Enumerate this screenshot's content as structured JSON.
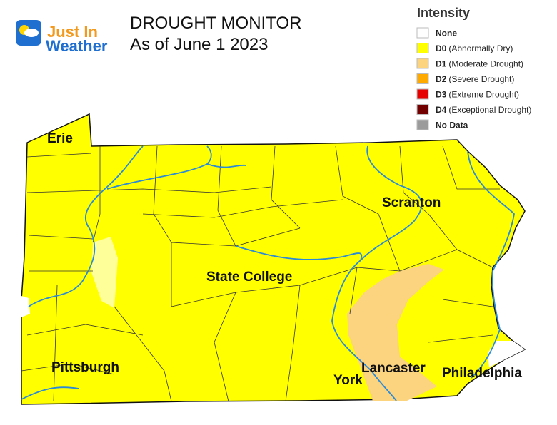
{
  "logo": {
    "line1": "Just In",
    "line2": "Weather"
  },
  "title": "DROUGHT MONITOR",
  "subtitle": "As of June 1 2023",
  "legend": {
    "title": "Intensity",
    "items": [
      {
        "code": "None",
        "color": "#ffffff"
      },
      {
        "code": "D0",
        "description": "(Abnormally Dry)",
        "color": "#ffff00"
      },
      {
        "code": "D1",
        "description": "(Moderate Drought)",
        "color": "#fcd37f"
      },
      {
        "code": "D2",
        "description": "(Severe Drought)",
        "color": "#ffaa00"
      },
      {
        "code": "D3",
        "description": "(Extreme Drought)",
        "color": "#e60000"
      },
      {
        "code": "D4",
        "description": "(Exceptional Drought)",
        "color": "#730000"
      },
      {
        "code": "No Data",
        "color": "#9b9b9b"
      }
    ]
  },
  "cities": [
    {
      "name": "Erie"
    },
    {
      "name": "Scranton"
    },
    {
      "name": "State College"
    },
    {
      "name": "Pittsburgh"
    },
    {
      "name": "York"
    },
    {
      "name": "Lancaster"
    },
    {
      "name": "Philadelphia"
    }
  ]
}
